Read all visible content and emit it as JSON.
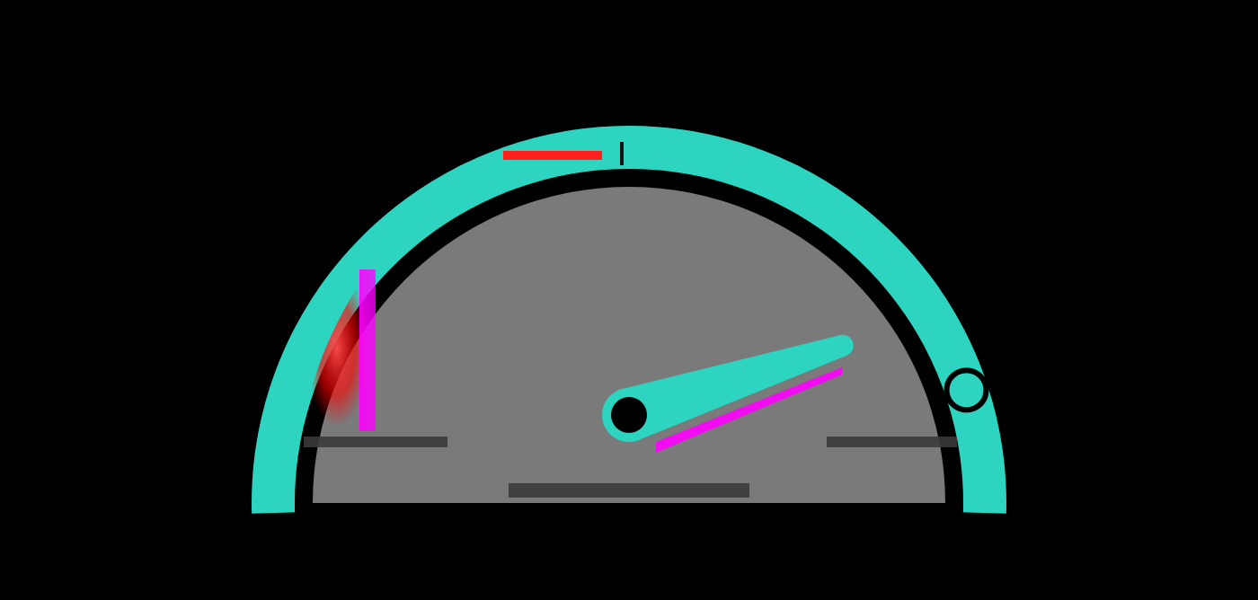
{
  "chart_data": {
    "type": "gauge",
    "title": "",
    "bands": [
      {
        "from": 0,
        "to": 0.2
      },
      {
        "from": 0.2,
        "to": 0.4
      },
      {
        "from": 0.4,
        "to": 0.6
      },
      {
        "from": 0.6,
        "to": 0.8
      },
      {
        "from": 0.8,
        "to": 1.0
      }
    ],
    "value": 0.9,
    "tick_labels": [],
    "axis_labels": [],
    "grid": false,
    "legend": "none",
    "colors": {
      "background": "#000000",
      "band": "#2dd4bf",
      "needle": "#2dd4bf",
      "hub": "#000000",
      "marker_ring": "#000000",
      "gap_accent": "#ff0000",
      "accent_magenta": "#ff00ff"
    }
  }
}
